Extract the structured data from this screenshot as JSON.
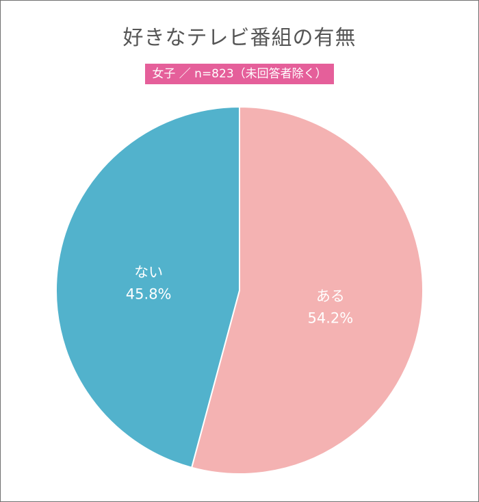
{
  "chart_data": {
    "type": "pie",
    "title": "好きなテレビ番組の有無",
    "subtitle": "女子 ／ n=823（未回答者除く）",
    "slices": [
      {
        "label": "ある",
        "value": 54.2,
        "value_label": "54.2%",
        "color": "#f4b2b2"
      },
      {
        "label": "ない",
        "value": 45.8,
        "value_label": "45.8%",
        "color": "#52b2cc"
      }
    ],
    "start": "12 o'clock",
    "direction": "clockwise"
  },
  "colors": {
    "subtitle_bg": "#e55f9a",
    "title_text": "#555555",
    "slice_border": "#ffffff"
  }
}
